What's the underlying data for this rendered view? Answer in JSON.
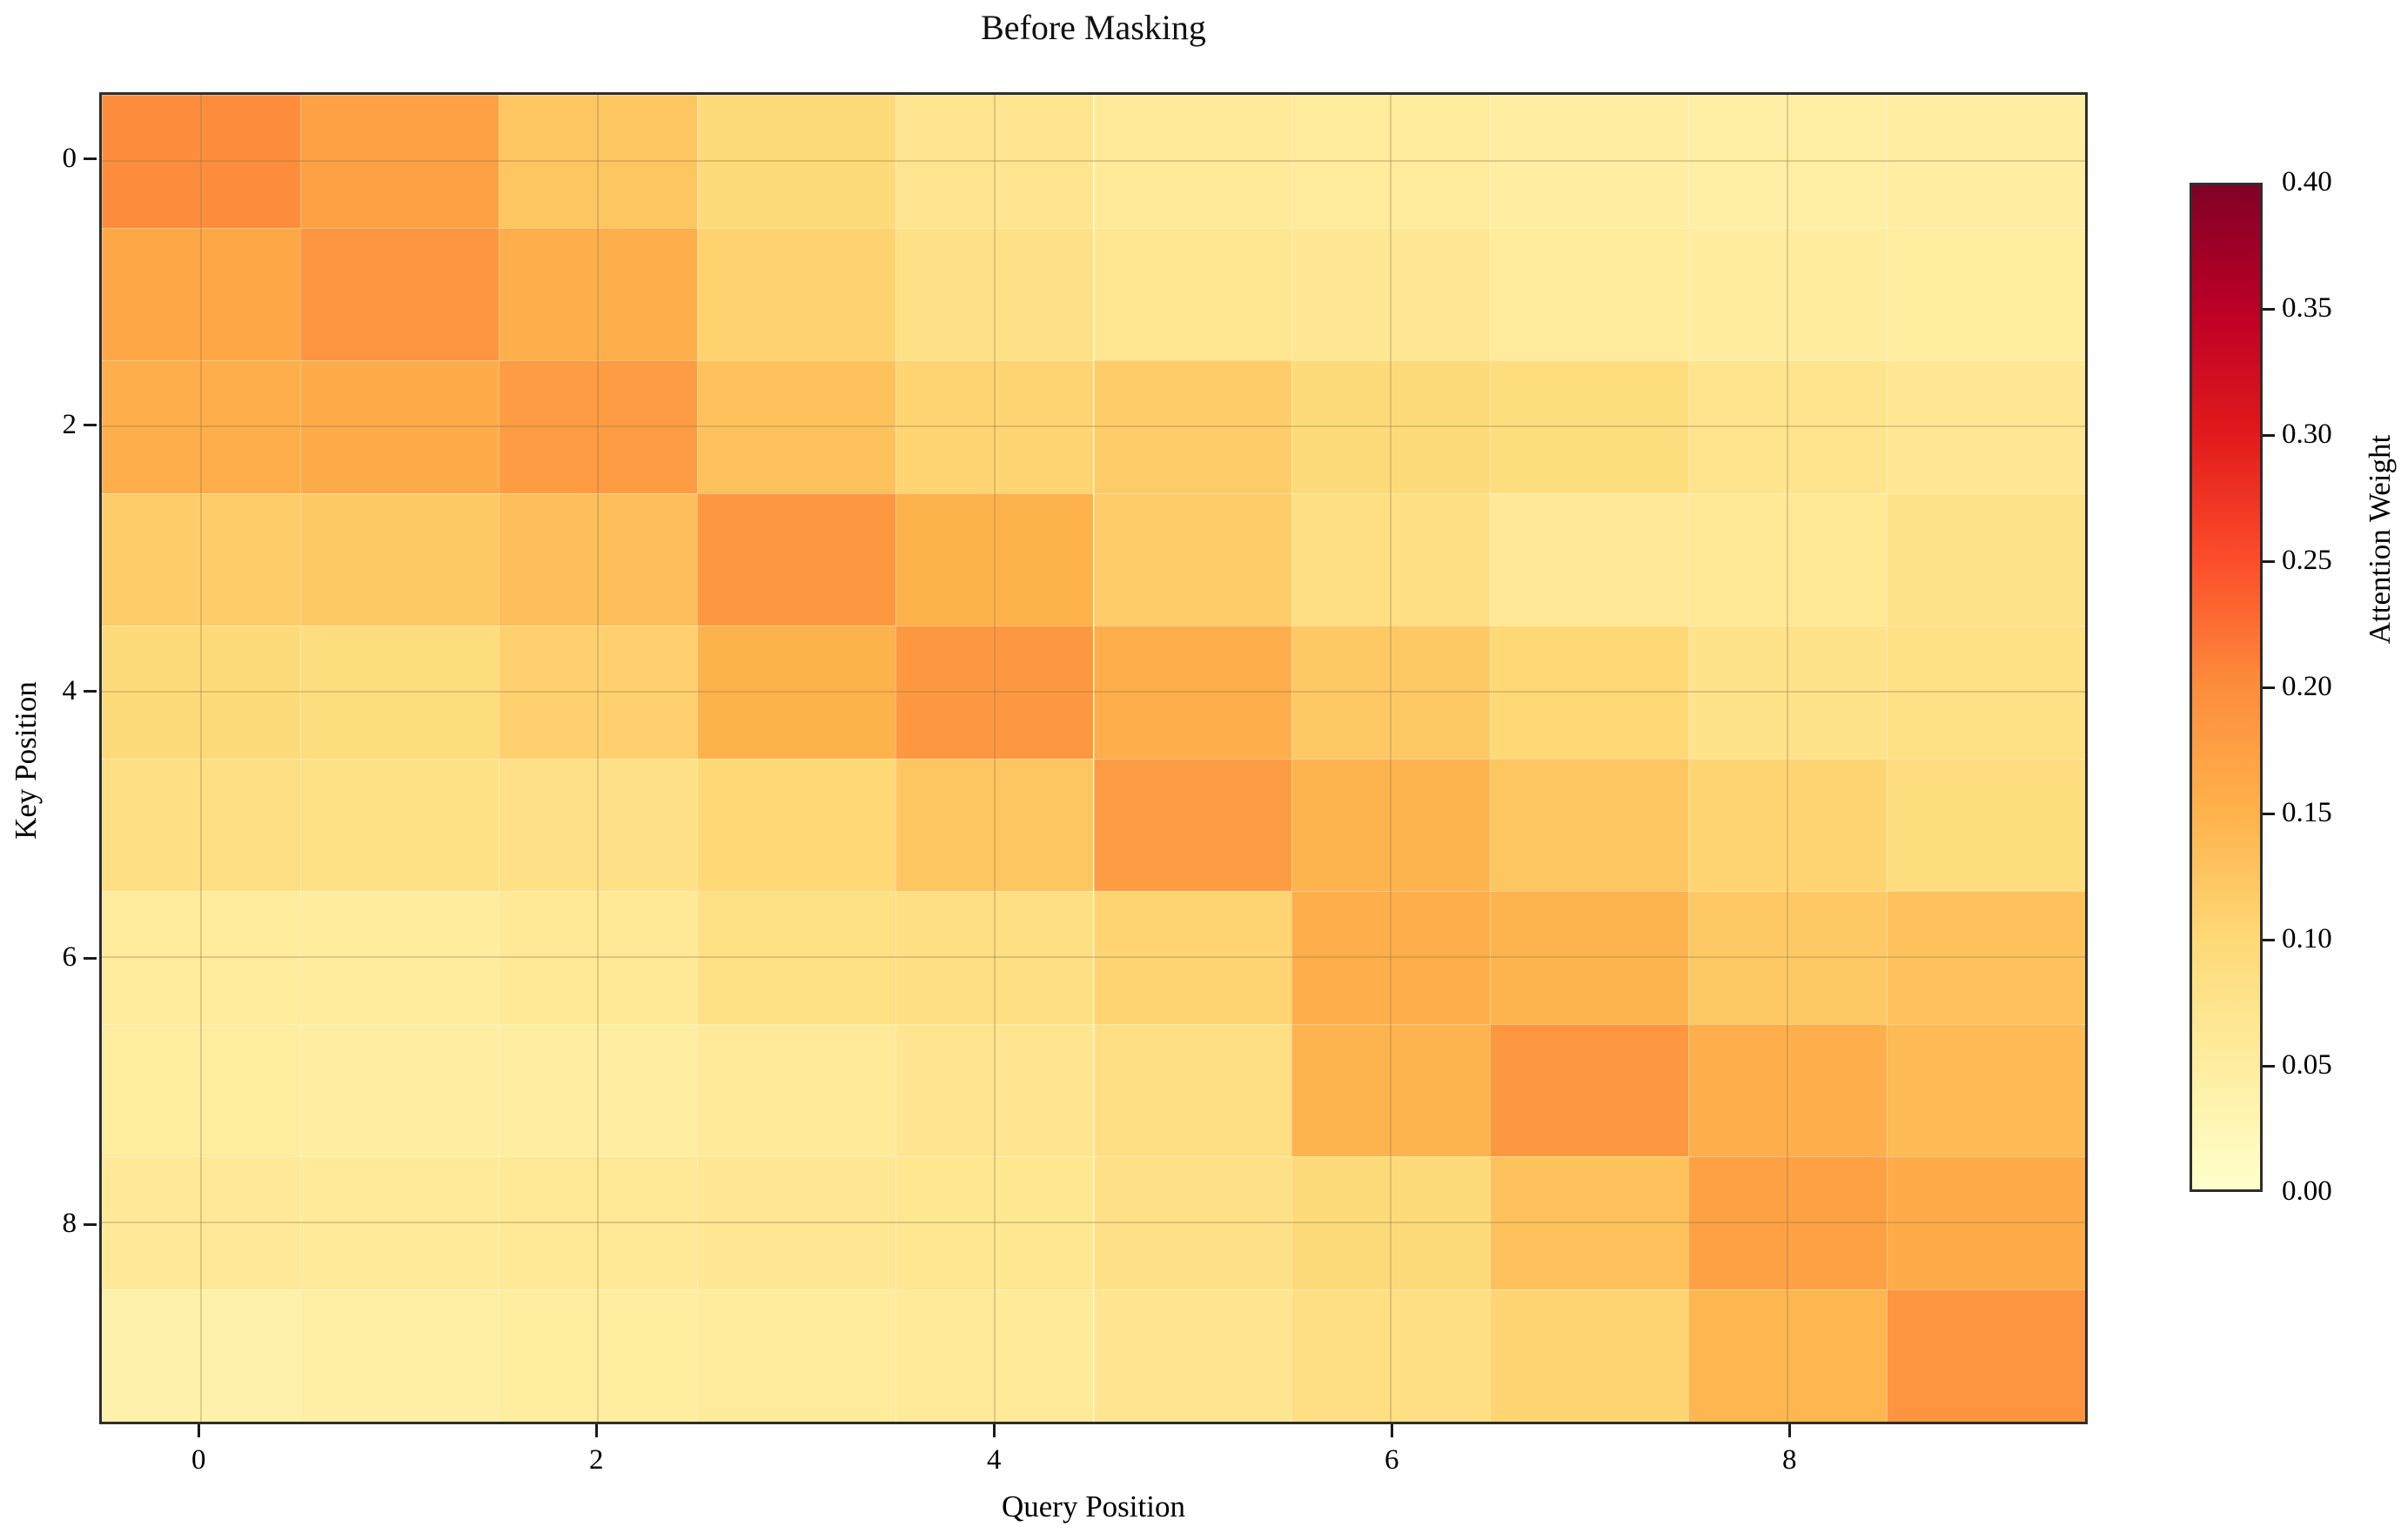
{
  "figure": {
    "title": "Before Masking",
    "background_color": "#ffffff",
    "spine_color": "#2e2e2e",
    "text_color": "#111111"
  },
  "chart_data": {
    "type": "heatmap",
    "title": "Before Masking",
    "xlabel": "Query Position",
    "ylabel": "Key Position",
    "x_tick_labels": [
      "0",
      "2",
      "4",
      "6",
      "8"
    ],
    "y_tick_labels": [
      "0",
      "2",
      "4",
      "6",
      "8"
    ],
    "x_tick_positions": [
      0,
      2,
      4,
      6,
      8
    ],
    "y_tick_positions": [
      0,
      2,
      4,
      6,
      8
    ],
    "n_rows": 10,
    "n_cols": 10,
    "rows_are": "key positions 0-9 (top to bottom)",
    "cols_are": "query positions 0-9 (left to right)",
    "grid": true,
    "vmin": 0.0,
    "vmax": 0.4,
    "matrix": [
      [
        0.2,
        0.175,
        0.125,
        0.095,
        0.07,
        0.058,
        0.055,
        0.048,
        0.045,
        0.048
      ],
      [
        0.165,
        0.19,
        0.155,
        0.108,
        0.08,
        0.068,
        0.065,
        0.055,
        0.052,
        0.05
      ],
      [
        0.155,
        0.16,
        0.18,
        0.13,
        0.105,
        0.115,
        0.095,
        0.09,
        0.072,
        0.065
      ],
      [
        0.115,
        0.12,
        0.135,
        0.185,
        0.15,
        0.115,
        0.085,
        0.06,
        0.062,
        0.078
      ],
      [
        0.095,
        0.09,
        0.11,
        0.15,
        0.185,
        0.155,
        0.12,
        0.1,
        0.075,
        0.082
      ],
      [
        0.085,
        0.082,
        0.08,
        0.1,
        0.125,
        0.18,
        0.148,
        0.125,
        0.105,
        0.09
      ],
      [
        0.055,
        0.053,
        0.062,
        0.082,
        0.085,
        0.105,
        0.155,
        0.148,
        0.12,
        0.13
      ],
      [
        0.05,
        0.048,
        0.048,
        0.058,
        0.07,
        0.085,
        0.148,
        0.185,
        0.155,
        0.14
      ],
      [
        0.06,
        0.058,
        0.062,
        0.065,
        0.068,
        0.08,
        0.095,
        0.13,
        0.175,
        0.16
      ],
      [
        0.038,
        0.045,
        0.05,
        0.055,
        0.058,
        0.07,
        0.085,
        0.105,
        0.145,
        0.19
      ]
    ]
  },
  "colorbar": {
    "label": "Attention Weight",
    "vmin": 0.0,
    "vmax": 0.4,
    "tick_values": [
      0.0,
      0.05,
      0.1,
      0.15,
      0.2,
      0.25,
      0.3,
      0.35,
      0.4
    ],
    "tick_labels": [
      "0.00",
      "0.05",
      "0.10",
      "0.15",
      "0.20",
      "0.25",
      "0.30",
      "0.35",
      "0.40"
    ],
    "colormap_name": "YlOrRd",
    "colormap_stops": [
      {
        "frac": 0.0,
        "color": "#ffffcc"
      },
      {
        "frac": 0.125,
        "color": "#ffeda0"
      },
      {
        "frac": 0.25,
        "color": "#fed976"
      },
      {
        "frac": 0.375,
        "color": "#feb24c"
      },
      {
        "frac": 0.5,
        "color": "#fd8d3c"
      },
      {
        "frac": 0.625,
        "color": "#fc4e2a"
      },
      {
        "frac": 0.75,
        "color": "#e31a1c"
      },
      {
        "frac": 0.875,
        "color": "#bd0026"
      },
      {
        "frac": 1.0,
        "color": "#800026"
      }
    ]
  }
}
